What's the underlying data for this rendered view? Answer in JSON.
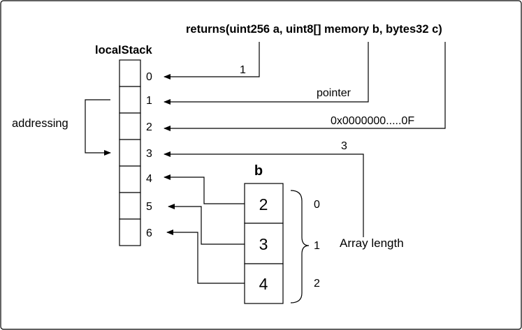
{
  "signature": "returns(uint256 a, uint8[] memory b, bytes32 c)",
  "stack": {
    "title": "localStack",
    "indices": [
      "0",
      "1",
      "2",
      "3",
      "4",
      "5",
      "6"
    ]
  },
  "addressing_label": "addressing",
  "arrow_labels": {
    "a": "1",
    "b": "pointer",
    "c": "0x0000000.....0F",
    "length": "3"
  },
  "array_b": {
    "title": "b",
    "values": [
      "2",
      "3",
      "4"
    ],
    "indices": [
      "0",
      "1",
      "2"
    ],
    "length_label": "Array length"
  }
}
